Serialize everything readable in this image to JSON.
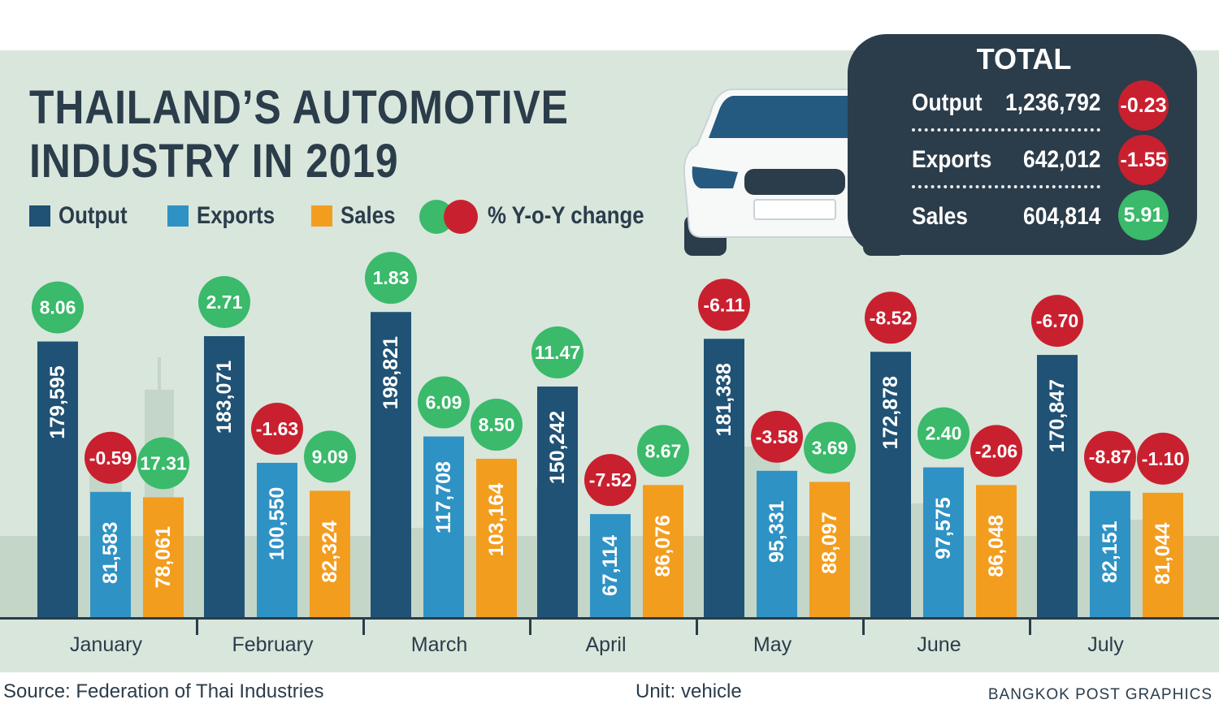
{
  "title_line1": "THAILAND’S AUTOMOTIVE",
  "title_line2": "INDUSTRY IN 2019",
  "legend": {
    "output": "Output",
    "exports": "Exports",
    "sales": "Sales",
    "change": "% Y-o-Y change"
  },
  "colors": {
    "output": "#1f5275",
    "exports": "#2f92c4",
    "sales": "#f39d1f",
    "positive": "#3aba6a",
    "negative": "#c9202f",
    "panel": "#2b3c4a",
    "background": "#d9e6dc"
  },
  "total": {
    "title": "TOTAL",
    "rows": [
      {
        "label": "Output",
        "value": "1,236,792",
        "change": "-0.23"
      },
      {
        "label": "Exports",
        "value": "642,012",
        "change": "-1.55"
      },
      {
        "label": "Sales",
        "value": "604,814",
        "change": "5.91"
      }
    ]
  },
  "chart_data": {
    "type": "bar",
    "categories": [
      "January",
      "February",
      "March",
      "April",
      "May",
      "June",
      "July"
    ],
    "unit": "vehicle",
    "series": [
      {
        "name": "Output",
        "values": [
          179595,
          183071,
          198821,
          150242,
          181338,
          172878,
          170847
        ],
        "labels": [
          "179,595",
          "183,071",
          "198,821",
          "150,242",
          "181,338",
          "172,878",
          "170,847"
        ],
        "change": [
          "8.06",
          "2.71",
          "1.83",
          "11.47",
          "-6.11",
          "-8.52",
          "-6.70"
        ]
      },
      {
        "name": "Exports",
        "values": [
          81583,
          100550,
          117708,
          67114,
          95331,
          97575,
          82151
        ],
        "labels": [
          "81,583",
          "100,550",
          "117,708",
          "67,114",
          "95,331",
          "97,575",
          "82,151"
        ],
        "change": [
          "-0.59",
          "-1.63",
          "6.09",
          "-7.52",
          "-3.58",
          "2.40",
          "-8.87"
        ]
      },
      {
        "name": "Sales",
        "values": [
          78061,
          82324,
          103164,
          86076,
          88097,
          86048,
          81044
        ],
        "labels": [
          "78,061",
          "82,324",
          "103,164",
          "86,076",
          "88,097",
          "86,048",
          "81,044"
        ],
        "change": [
          "17.31",
          "9.09",
          "8.50",
          "8.67",
          "3.69",
          "-2.06",
          "-1.10"
        ]
      }
    ]
  },
  "footer": {
    "source": "Source: Federation of Thai Industries",
    "unit": "Unit: vehicle",
    "credit": "BANGKOK POST GRAPHICS"
  }
}
